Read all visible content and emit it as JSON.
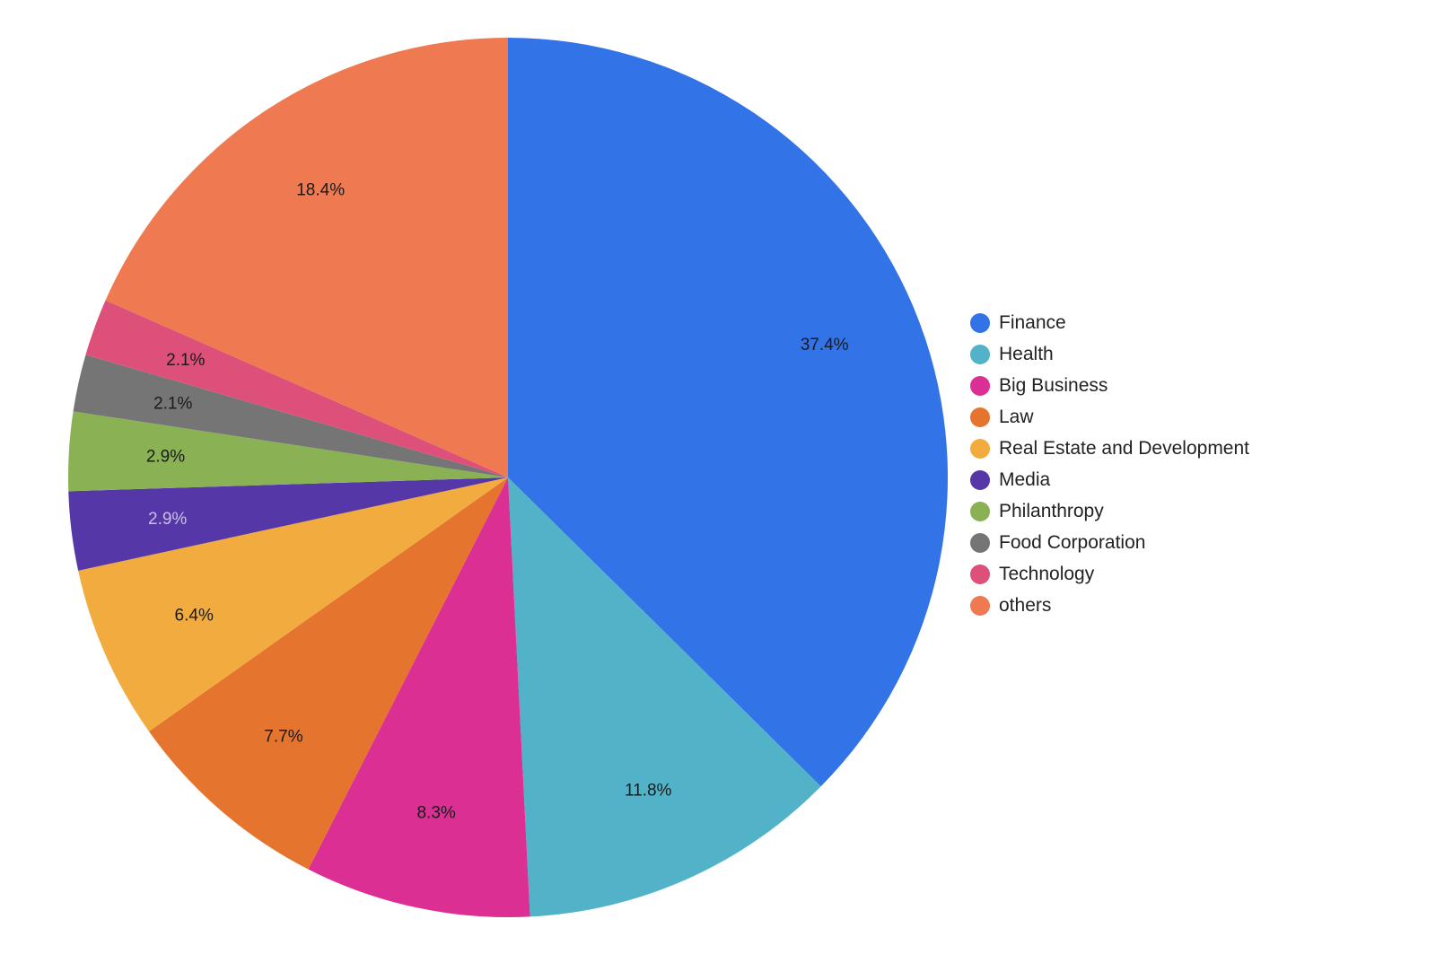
{
  "chart_data": {
    "type": "pie",
    "title": "",
    "legend_position": "right",
    "start_angle": "12 o'clock, clockwise",
    "slices": [
      {
        "label": "Finance",
        "value": 37.4,
        "value_label": "37.4%",
        "color": "#3273e8",
        "label_color": "#1a1a1a"
      },
      {
        "label": "Health",
        "value": 11.8,
        "value_label": "11.8%",
        "color": "#52b3c8",
        "label_color": "#1a1a1a"
      },
      {
        "label": "Big Business",
        "value": 8.3,
        "value_label": "8.3%",
        "color": "#dc2f94",
        "label_color": "#1a1a1a"
      },
      {
        "label": "Law",
        "value": 7.7,
        "value_label": "7.7%",
        "color": "#e5742e",
        "label_color": "#1a1a1a"
      },
      {
        "label": "Real Estate and Development",
        "value": 6.4,
        "value_label": "6.4%",
        "color": "#f2ab3e",
        "label_color": "#1a1a1a"
      },
      {
        "label": "Media",
        "value": 2.9,
        "value_label": "2.9%",
        "color": "#5637a8",
        "label_color": "#c9c2e6"
      },
      {
        "label": "Philanthropy",
        "value": 2.9,
        "value_label": "2.9%",
        "color": "#8ab254",
        "label_color": "#1a1a1a"
      },
      {
        "label": "Food Corporation",
        "value": 2.1,
        "value_label": "2.1%",
        "color": "#757575",
        "label_color": "#1a1a1a"
      },
      {
        "label": "Technology",
        "value": 2.1,
        "value_label": "2.1%",
        "color": "#dc507a",
        "label_color": "#1a1a1a"
      },
      {
        "label": "others",
        "value": 18.4,
        "value_label": "18.4%",
        "color": "#ef7a52",
        "label_color": "#1a1a1a"
      }
    ]
  }
}
